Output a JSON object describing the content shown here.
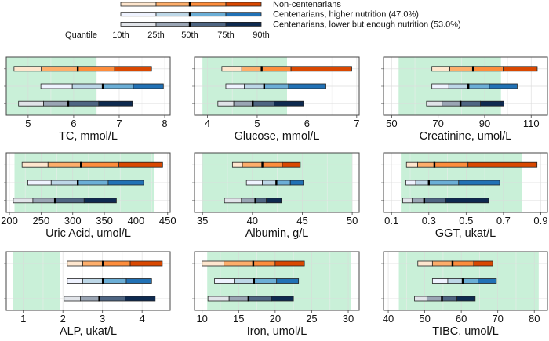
{
  "legend": {
    "series": [
      {
        "name": "Non-centenarians",
        "colors": [
          "#fee6ce",
          "#fdae6b",
          "#fd8d3c",
          "#d94801"
        ]
      },
      {
        "name": "Centenarians, higher nutrition (47.0%)",
        "colors": [
          "#eff3ff",
          "#bdd7e7",
          "#6baed6",
          "#2171b5"
        ]
      },
      {
        "name": "Centenarians, lower but enough nutrition (53.0%)",
        "colors": [
          "#e1e4e9",
          "#9aa5b4",
          "#4e6582",
          "#0e2a50"
        ]
      }
    ],
    "quantile_label": "Quantile",
    "quantiles": [
      "10th",
      "25th",
      "50th",
      "75th",
      "90th"
    ]
  },
  "reference_range_color": "#c9f0d8",
  "chart_data": [
    {
      "type": "bar",
      "xlabel": "TC, mmol/L",
      "xlim": [
        4.52,
        8.12
      ],
      "ticks": [
        5,
        6,
        7,
        8
      ],
      "ticklabels": [
        "5",
        "6",
        "7",
        "8"
      ],
      "grid": true,
      "reference_range": [
        4.5,
        6.5
      ],
      "series": [
        {
          "name": "Non-centenarians",
          "quantiles": [
            4.69,
            5.29,
            6.09,
            6.9,
            7.71
          ]
        },
        {
          "name": "Centenarians, higher nutrition (47.0%)",
          "quantiles": [
            5.28,
            5.97,
            6.64,
            7.31,
            7.97
          ]
        },
        {
          "name": "Centenarians, lower but enough nutrition (53.0%)",
          "quantiles": [
            4.79,
            5.34,
            5.88,
            6.55,
            7.29
          ]
        }
      ]
    },
    {
      "type": "bar",
      "xlabel": "Glucose, mmol/L",
      "xlim": [
        3.74,
        7.05
      ],
      "ticks": [
        4,
        5,
        6,
        7
      ],
      "ticklabels": [
        "4",
        "5",
        "6",
        "7"
      ],
      "grid": true,
      "reference_range": [
        3.9,
        5.6
      ],
      "series": [
        {
          "name": "Non-centenarians",
          "quantiles": [
            4.29,
            4.69,
            5.09,
            5.68,
            6.9
          ]
        },
        {
          "name": "Centenarians, higher nutrition (47.0%)",
          "quantiles": [
            4.37,
            4.74,
            5.14,
            5.63,
            6.38
          ]
        },
        {
          "name": "Centenarians, lower but enough nutrition (53.0%)",
          "quantiles": [
            4.21,
            4.53,
            4.91,
            5.34,
            5.93
          ]
        }
      ]
    },
    {
      "type": "bar",
      "xlabel": "Creatinine, umol/L",
      "xlim": [
        46.5,
        117
      ],
      "ticks": [
        50,
        70,
        90,
        110
      ],
      "ticklabels": [
        "50",
        "70",
        "90",
        "110"
      ],
      "grid": true,
      "reference_range": [
        53,
        97
      ],
      "series": [
        {
          "name": "Non-centenarians",
          "quantiles": [
            67.3,
            75,
            85,
            98,
            112.6
          ]
        },
        {
          "name": "Centenarians, higher nutrition (47.0%)",
          "quantiles": [
            67.3,
            74.6,
            83,
            92,
            104
          ]
        },
        {
          "name": "Centenarians, lower but enough nutrition (53.0%)",
          "quantiles": [
            65,
            71.7,
            79.6,
            88.2,
            98.3
          ]
        }
      ]
    },
    {
      "type": "bar",
      "xlabel": "Uric Acid, umol/L",
      "xlim": [
        195,
        454
      ],
      "ticks": [
        200,
        250,
        300,
        350,
        400,
        450
      ],
      "ticklabels": [
        "200",
        "250",
        "300",
        "350",
        "400",
        "450"
      ],
      "grid": true,
      "reference_range": [
        208,
        428
      ],
      "series": [
        {
          "name": "Non-centenarians",
          "quantiles": [
            220,
            261,
            313,
            373,
            442
          ]
        },
        {
          "name": "Centenarians, higher nutrition (47.0%)",
          "quantiles": [
            229,
            266,
            308,
            356,
            412
          ]
        },
        {
          "name": "Centenarians, lower but enough nutrition (53.0%)",
          "quantiles": [
            206,
            237,
            272,
            318,
            369
          ]
        }
      ]
    },
    {
      "type": "bar",
      "xlabel": "Albumin, g/L",
      "xlim": [
        34.2,
        50.7
      ],
      "ticks": [
        35,
        40,
        45,
        50
      ],
      "ticklabels": [
        "35",
        "40",
        "45",
        "50"
      ],
      "grid": true,
      "reference_range": [
        35,
        50
      ],
      "series": [
        {
          "name": "Non-centenarians",
          "quantiles": [
            38.0,
            39.0,
            41.0,
            43.0,
            44.8
          ]
        },
        {
          "name": "Centenarians, higher nutrition (47.0%)",
          "quantiles": [
            39.4,
            41.0,
            42.4,
            43.8,
            45.1
          ]
        },
        {
          "name": "Centenarians, lower but enough nutrition (53.0%)",
          "quantiles": [
            37.2,
            38.9,
            40.3,
            41.4,
            42.9
          ]
        }
      ]
    },
    {
      "type": "bar",
      "xlabel": "GGT, ukat/L",
      "xlim": [
        0.057,
        0.936
      ],
      "ticks": [
        0.1,
        0.3,
        0.5,
        0.7,
        0.9
      ],
      "ticklabels": [
        "0.1",
        "0.3",
        "0.5",
        "0.7",
        "0.9"
      ],
      "grid": true,
      "reference_range": [
        0.15,
        0.8
      ],
      "series": [
        {
          "name": "Non-centenarians",
          "quantiles": [
            0.18,
            0.24,
            0.33,
            0.51,
            0.88
          ]
        },
        {
          "name": "Centenarians, higher nutrition (47.0%)",
          "quantiles": [
            0.177,
            0.23,
            0.3,
            0.46,
            0.68
          ]
        },
        {
          "name": "Centenarians, lower but enough nutrition (53.0%)",
          "quantiles": [
            0.16,
            0.21,
            0.275,
            0.39,
            0.62
          ]
        }
      ]
    },
    {
      "type": "bar",
      "xlabel": "ALP, ukat/L",
      "xlim": [
        0.57,
        4.71
      ],
      "ticks": [
        1,
        2,
        3,
        4
      ],
      "ticklabels": [
        "1",
        "2",
        "3",
        "4"
      ],
      "grid": true,
      "reference_range": [
        0.74,
        1.93
      ],
      "series": [
        {
          "name": "Non-centenarians",
          "quantiles": [
            2.11,
            2.5,
            3.01,
            3.7,
            4.51
          ]
        },
        {
          "name": "Centenarians, higher nutrition (47.0%)",
          "quantiles": [
            2.11,
            2.5,
            3.01,
            3.6,
            4.24
          ]
        },
        {
          "name": "Centenarians, lower but enough nutrition (53.0%)",
          "quantiles": [
            2.03,
            2.44,
            2.92,
            3.57,
            4.33
          ]
        }
      ]
    },
    {
      "type": "bar",
      "xlabel": "Iron, umol/L",
      "xlim": [
        8.96,
        31.5
      ],
      "ticks": [
        10,
        15,
        20,
        25,
        30
      ],
      "ticklabels": [
        "10",
        "15",
        "20",
        "25",
        "30"
      ],
      "grid": true,
      "reference_range": [
        10.7,
        30.4
      ],
      "series": [
        {
          "name": "Non-centenarians",
          "quantiles": [
            10.0,
            13.0,
            17.0,
            20.0,
            24.0
          ]
        },
        {
          "name": "Centenarians, higher nutrition (47.0%)",
          "quantiles": [
            11.7,
            14.4,
            17.1,
            20.2,
            23.2
          ]
        },
        {
          "name": "Centenarians, lower but enough nutrition (53.0%)",
          "quantiles": [
            10.8,
            13.7,
            16.35,
            19.5,
            22.5
          ]
        }
      ]
    },
    {
      "type": "bar",
      "xlabel": "TIBC, umol/L",
      "xlim": [
        38.7,
        83.6
      ],
      "ticks": [
        40,
        50,
        60,
        70,
        80
      ],
      "ticklabels": [
        "40",
        "50",
        "60",
        "70",
        "80"
      ],
      "grid": true,
      "reference_range": [
        42.9,
        81.2
      ],
      "series": [
        {
          "name": "Non-centenarians",
          "quantiles": [
            48.1,
            52.1,
            57.6,
            63.4,
            68.6
          ]
        },
        {
          "name": "Centenarians, higher nutrition (47.0%)",
          "quantiles": [
            52.1,
            56.3,
            60.4,
            64.6,
            69.6
          ]
        },
        {
          "name": "Centenarians, lower but enough nutrition (53.0%)",
          "quantiles": [
            47.2,
            50.6,
            54.7,
            58.8,
            63.8
          ]
        }
      ]
    }
  ]
}
